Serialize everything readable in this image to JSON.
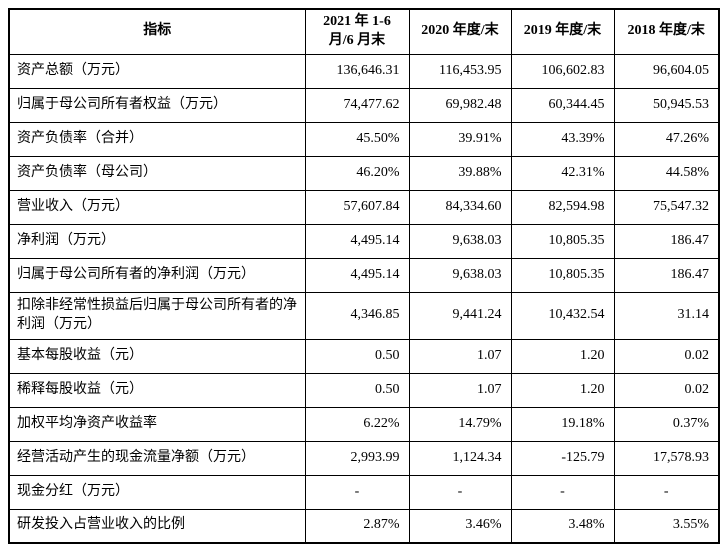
{
  "table": {
    "headers": [
      "指标",
      "2021 年 1-6\n月/6 月末",
      "2020 年度/末",
      "2019 年度/末",
      "2018 年度/末"
    ],
    "rows": [
      {
        "label": "资产总额（万元）",
        "values": [
          "136,646.31",
          "116,453.95",
          "106,602.83",
          "96,604.05"
        ]
      },
      {
        "label": "归属于母公司所有者权益（万元）",
        "values": [
          "74,477.62",
          "69,982.48",
          "60,344.45",
          "50,945.53"
        ]
      },
      {
        "label": "资产负债率（合并）",
        "values": [
          "45.50%",
          "39.91%",
          "43.39%",
          "47.26%"
        ]
      },
      {
        "label": "资产负债率（母公司）",
        "values": [
          "46.20%",
          "39.88%",
          "42.31%",
          "44.58%"
        ]
      },
      {
        "label": "营业收入（万元）",
        "values": [
          "57,607.84",
          "84,334.60",
          "82,594.98",
          "75,547.32"
        ]
      },
      {
        "label": "净利润（万元）",
        "values": [
          "4,495.14",
          "9,638.03",
          "10,805.35",
          "186.47"
        ]
      },
      {
        "label": "归属于母公司所有者的净利润（万元）",
        "values": [
          "4,495.14",
          "9,638.03",
          "10,805.35",
          "186.47"
        ]
      },
      {
        "label": "扣除非经常性损益后归属于母公司所有者的净利润（万元）",
        "values": [
          "4,346.85",
          "9,441.24",
          "10,432.54",
          "31.14"
        ]
      },
      {
        "label": "基本每股收益（元）",
        "values": [
          "0.50",
          "1.07",
          "1.20",
          "0.02"
        ]
      },
      {
        "label": "稀释每股收益（元）",
        "values": [
          "0.50",
          "1.07",
          "1.20",
          "0.02"
        ]
      },
      {
        "label": "加权平均净资产收益率",
        "values": [
          "6.22%",
          "14.79%",
          "19.18%",
          "0.37%"
        ]
      },
      {
        "label": "经营活动产生的现金流量净额（万元）",
        "values": [
          "2,993.99",
          "1,124.34",
          "-125.79",
          "17,578.93"
        ]
      },
      {
        "label": "现金分红（万元）",
        "values": [
          "-",
          "-",
          "-",
          "-"
        ]
      },
      {
        "label": "研发投入占营业收入的比例",
        "values": [
          "2.87%",
          "3.46%",
          "3.48%",
          "3.55%"
        ]
      }
    ]
  }
}
